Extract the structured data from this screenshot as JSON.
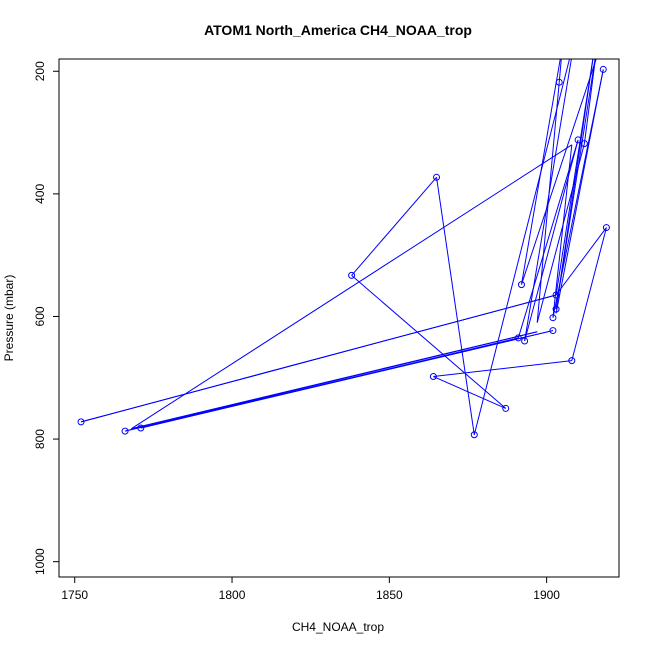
{
  "chart_data": {
    "type": "line",
    "title": "ATOM1 North_America CH4_NOAA_trop",
    "xlabel": "CH4_NOAA_trop",
    "ylabel": "Pressure (mbar)",
    "xlim": [
      1745,
      1923
    ],
    "ylim": [
      1025,
      180
    ],
    "y_reversed": true,
    "x_ticks": [
      1750,
      1800,
      1850,
      1900
    ],
    "y_ticks": [
      200,
      400,
      600,
      800,
      1000
    ],
    "grid": false,
    "series_color": "#0000ff",
    "points": [
      {
        "x": 1918,
        "y": 145
      },
      {
        "x": 1892,
        "y": 548
      },
      {
        "x": 1905,
        "y": 160
      },
      {
        "x": 1904,
        "y": 218
      },
      {
        "x": 1897,
        "y": 610
      },
      {
        "x": 1912,
        "y": 318
      },
      {
        "x": 1916,
        "y": 160
      },
      {
        "x": 1903,
        "y": 588
      },
      {
        "x": 1915,
        "y": 170
      },
      {
        "x": 1903,
        "y": 565
      },
      {
        "x": 1752,
        "y": 772
      },
      {
        "x": 1903,
        "y": 565
      },
      {
        "x": 1919,
        "y": 455
      },
      {
        "x": 1908,
        "y": 672
      },
      {
        "x": 1864,
        "y": 698
      },
      {
        "x": 1887,
        "y": 750
      },
      {
        "x": 1838,
        "y": 533
      },
      {
        "x": 1865,
        "y": 373
      },
      {
        "x": 1877,
        "y": 793
      },
      {
        "x": 1909,
        "y": 145
      },
      {
        "x": 1893,
        "y": 640
      },
      {
        "x": 1910,
        "y": 312
      },
      {
        "x": 1891,
        "y": 635
      },
      {
        "x": 1771,
        "y": 782
      },
      {
        "x": 1902,
        "y": 623
      },
      {
        "x": 1766,
        "y": 787
      },
      {
        "x": 1897,
        "y": 625
      },
      {
        "x": 1768,
        "y": 783
      },
      {
        "x": 1908,
        "y": 320
      },
      {
        "x": 1902,
        "y": 602
      },
      {
        "x": 1918,
        "y": 197
      },
      {
        "x": 1903,
        "y": 595
      }
    ],
    "marker_indices": [
      1,
      3,
      5,
      7,
      9,
      10,
      12,
      13,
      14,
      15,
      16,
      17,
      18,
      20,
      21,
      22,
      23,
      24,
      25,
      29,
      30
    ]
  }
}
